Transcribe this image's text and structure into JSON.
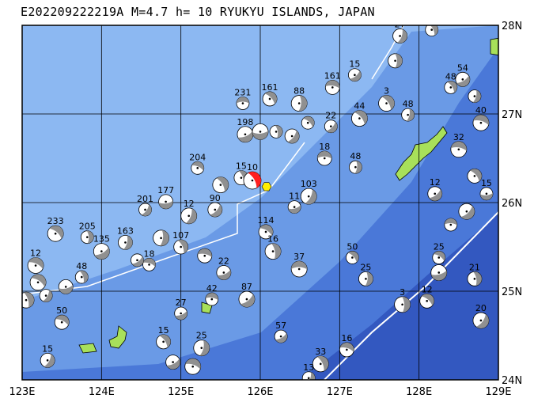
{
  "title": "E202209222219A M=4.7 h=  10 RYUKYU ISLANDS, JAPAN",
  "map": {
    "lon_range": [
      123,
      129
    ],
    "lat_range": [
      24,
      28
    ],
    "lon_ticks": [
      "123E",
      "124E",
      "125E",
      "126E",
      "127E",
      "128E",
      "129E"
    ],
    "lat_ticks": [
      "24N",
      "25N",
      "26N",
      "27N",
      "28N"
    ],
    "colors": {
      "land": "#a8e05a",
      "shelf": "#8cb8f2",
      "slope": "#6a9ae6",
      "deep": "#4a78d8",
      "trench": "#3358c0",
      "grid": "#000000",
      "main_event": "#ff2020",
      "epicenter": "#ffee00"
    }
  },
  "main_event": {
    "lon": 125.9,
    "lat": 26.25,
    "label": "10"
  },
  "epicenter": {
    "lon": 126.08,
    "lat": 26.18
  },
  "events": [
    {
      "lon": 125.78,
      "lat": 27.12,
      "label": "231"
    },
    {
      "lon": 126.12,
      "lat": 27.17,
      "label": "161"
    },
    {
      "lon": 126.49,
      "lat": 27.12,
      "label": "88"
    },
    {
      "lon": 127.19,
      "lat": 27.44,
      "label": "15"
    },
    {
      "lon": 126.91,
      "lat": 27.3,
      "label": "161"
    },
    {
      "lon": 127.59,
      "lat": 27.12,
      "label": "3"
    },
    {
      "lon": 127.86,
      "lat": 26.99,
      "label": "48"
    },
    {
      "lon": 128.55,
      "lat": 27.39,
      "label": "54"
    },
    {
      "lon": 128.78,
      "lat": 26.9,
      "label": "40"
    },
    {
      "lon": 128.16,
      "lat": 27.95,
      "label": "20"
    },
    {
      "lon": 127.76,
      "lat": 27.88,
      "label": "27"
    },
    {
      "lon": 125.81,
      "lat": 26.77,
      "label": "198"
    },
    {
      "lon": 125.21,
      "lat": 26.39,
      "label": "204"
    },
    {
      "lon": 125.76,
      "lat": 26.28,
      "label": "15"
    },
    {
      "lon": 126.61,
      "lat": 26.07,
      "label": "103"
    },
    {
      "lon": 126.43,
      "lat": 25.95,
      "label": "11"
    },
    {
      "lon": 126.07,
      "lat": 25.67,
      "label": "114"
    },
    {
      "lon": 126.16,
      "lat": 25.45,
      "label": "16"
    },
    {
      "lon": 124.55,
      "lat": 25.92,
      "label": "201"
    },
    {
      "lon": 124.81,
      "lat": 26.01,
      "label": "177"
    },
    {
      "lon": 123.42,
      "lat": 25.65,
      "label": "233"
    },
    {
      "lon": 123.82,
      "lat": 25.61,
      "label": "205"
    },
    {
      "lon": 125.43,
      "lat": 25.92,
      "label": "90"
    },
    {
      "lon": 126.49,
      "lat": 25.25,
      "label": "37"
    },
    {
      "lon": 127.16,
      "lat": 25.38,
      "label": "50"
    },
    {
      "lon": 127.33,
      "lat": 25.14,
      "label": "25"
    },
    {
      "lon": 125.83,
      "lat": 24.91,
      "label": "87"
    },
    {
      "lon": 125.39,
      "lat": 24.91,
      "label": "42"
    },
    {
      "lon": 124.78,
      "lat": 24.43,
      "label": "15"
    },
    {
      "lon": 125.26,
      "lat": 24.36,
      "label": "25"
    },
    {
      "lon": 126.26,
      "lat": 24.49,
      "label": "57"
    },
    {
      "lon": 127.09,
      "lat": 24.34,
      "label": "16"
    },
    {
      "lon": 126.76,
      "lat": 24.18,
      "label": "33"
    },
    {
      "lon": 126.61,
      "lat": 24.02,
      "label": "13"
    },
    {
      "lon": 125.54,
      "lat": 25.21,
      "label": "22"
    },
    {
      "lon": 123.17,
      "lat": 25.29,
      "label": "12"
    },
    {
      "lon": 123.75,
      "lat": 25.16,
      "label": "48"
    },
    {
      "lon": 123.32,
      "lat": 24.22,
      "label": "15"
    },
    {
      "lon": 128.25,
      "lat": 25.21,
      "label": "12"
    },
    {
      "lon": 128.25,
      "lat": 25.38,
      "label": "25"
    },
    {
      "lon": 128.7,
      "lat": 25.14,
      "label": "21"
    },
    {
      "lon": 128.78,
      "lat": 24.67,
      "label": "20"
    },
    {
      "lon": 128.85,
      "lat": 26.1,
      "label": "15"
    },
    {
      "lon": 128.1,
      "lat": 24.89,
      "label": "12"
    },
    {
      "lon": 127.79,
      "lat": 24.85,
      "label": "3"
    },
    {
      "lon": 126.89,
      "lat": 26.86,
      "label": "22"
    },
    {
      "lon": 126.81,
      "lat": 26.5,
      "label": "18"
    },
    {
      "lon": 127.25,
      "lat": 26.95,
      "label": "44"
    },
    {
      "lon": 127.2,
      "lat": 26.4,
      "label": "48"
    },
    {
      "lon": 128.2,
      "lat": 26.1,
      "label": "12"
    },
    {
      "lon": 128.5,
      "lat": 26.6,
      "label": "32"
    },
    {
      "lon": 128.4,
      "lat": 27.3,
      "label": "48"
    },
    {
      "lon": 124.3,
      "lat": 25.55,
      "label": "163"
    },
    {
      "lon": 124.0,
      "lat": 25.45,
      "label": "135"
    },
    {
      "lon": 124.6,
      "lat": 25.3,
      "label": "18"
    },
    {
      "lon": 125.0,
      "lat": 25.5,
      "label": "107"
    },
    {
      "lon": 125.1,
      "lat": 25.85,
      "label": "12"
    },
    {
      "lon": 125.0,
      "lat": 24.75,
      "label": "27"
    },
    {
      "lon": 123.5,
      "lat": 24.65,
      "label": "50"
    },
    {
      "lon": 123.05,
      "lat": 24.9,
      "label": ""
    },
    {
      "lon": 123.3,
      "lat": 24.95,
      "label": ""
    },
    {
      "lon": 123.55,
      "lat": 25.05,
      "label": ""
    },
    {
      "lon": 123.2,
      "lat": 25.1,
      "label": ""
    },
    {
      "lon": 126.2,
      "lat": 26.8,
      "label": ""
    },
    {
      "lon": 126.4,
      "lat": 26.75,
      "label": ""
    },
    {
      "lon": 126.0,
      "lat": 26.8,
      "label": ""
    },
    {
      "lon": 126.6,
      "lat": 26.9,
      "label": ""
    },
    {
      "lon": 127.7,
      "lat": 27.6,
      "label": ""
    },
    {
      "lon": 128.6,
      "lat": 25.9,
      "label": ""
    },
    {
      "lon": 128.4,
      "lat": 25.75,
      "label": ""
    },
    {
      "lon": 128.7,
      "lat": 26.3,
      "label": ""
    },
    {
      "lon": 124.75,
      "lat": 25.6,
      "label": ""
    },
    {
      "lon": 124.45,
      "lat": 25.35,
      "label": ""
    },
    {
      "lon": 125.3,
      "lat": 25.4,
      "label": ""
    },
    {
      "lon": 125.5,
      "lat": 26.2,
      "label": ""
    },
    {
      "lon": 128.7,
      "lat": 27.2,
      "label": ""
    },
    {
      "lon": 124.9,
      "lat": 24.2,
      "label": ""
    },
    {
      "lon": 125.15,
      "lat": 24.15,
      "label": ""
    }
  ]
}
